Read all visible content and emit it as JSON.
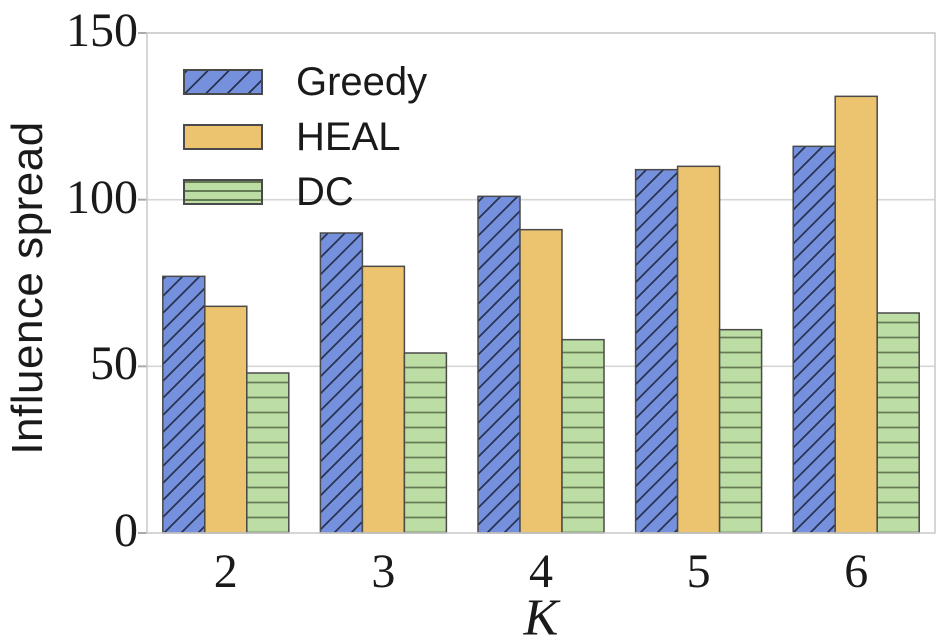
{
  "chart_data": {
    "type": "bar",
    "title": "",
    "xlabel": "K",
    "ylabel": "Influence spread",
    "categories": [
      "2",
      "3",
      "4",
      "5",
      "6"
    ],
    "yticks": [
      0,
      50,
      100,
      150
    ],
    "ylim": [
      0,
      150
    ],
    "grid": true,
    "legend_position": "upper left",
    "series": [
      {
        "name": "Greedy",
        "values": [
          77,
          90,
          101,
          109,
          116
        ],
        "fill": "#7590dd",
        "hatch": "diagonal",
        "hatch_color": "#26324e"
      },
      {
        "name": "HEAL",
        "values": [
          68,
          80,
          91,
          110,
          131
        ],
        "fill": "#ecc46f",
        "hatch": "none",
        "hatch_color": "#ecc46f"
      },
      {
        "name": "DC",
        "values": [
          48,
          54,
          58,
          61,
          66
        ],
        "fill": "#bcdda4",
        "hatch": "horizontal",
        "hatch_color": "#647a53"
      }
    ],
    "style": {
      "bar_edge": "#4a4a4a",
      "grid_color": "#d6d6d6",
      "spine_color": "#cccccc",
      "tick_color": "#aaaaaa",
      "text_color": "#1a1a1a",
      "background": "#ffffff"
    }
  }
}
